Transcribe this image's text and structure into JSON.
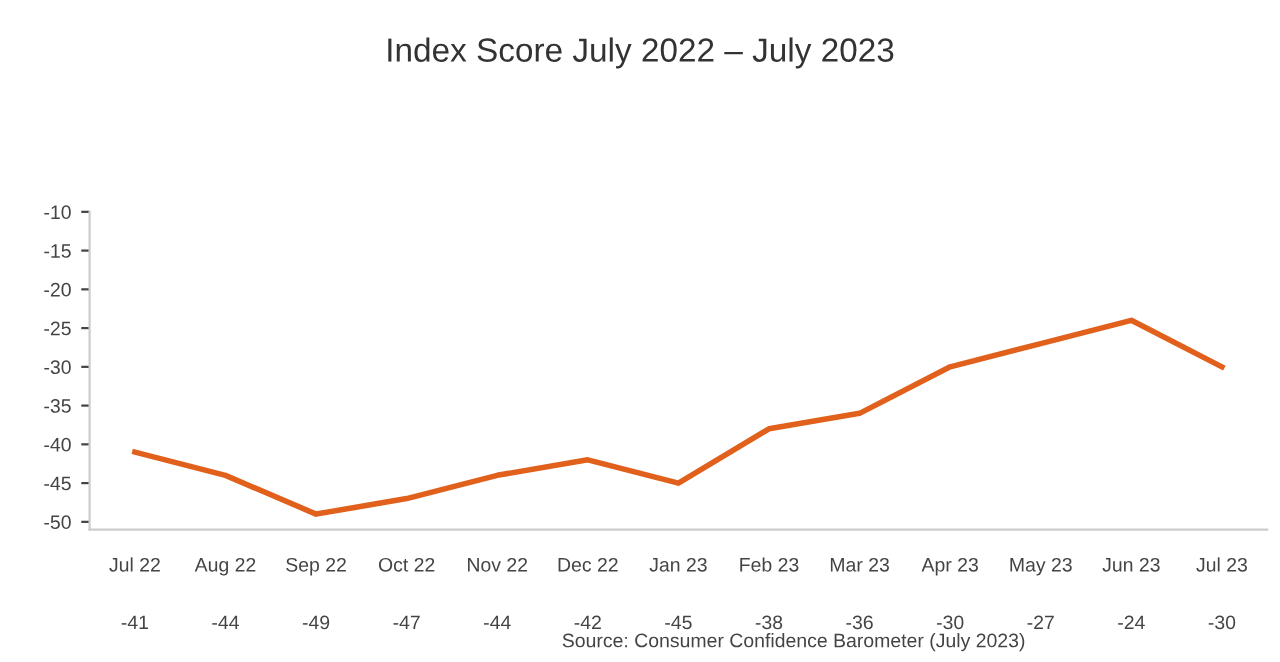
{
  "chart_data": {
    "type": "line",
    "title": "Index Score July 2022 – July 2023",
    "categories": [
      "Jul 22",
      "Aug 22",
      "Sep 22",
      "Oct 22",
      "Nov 22",
      "Dec 22",
      "Jan 23",
      "Feb 23",
      "Mar 23",
      "Apr 23",
      "May 23",
      "Jun 23",
      "Jul 23"
    ],
    "series": [
      {
        "color": "#e0601c",
        "values": [
          -41,
          -44,
          -49,
          -47,
          -44,
          -42,
          -45,
          -38,
          -36,
          -30,
          -27,
          -24,
          -30
        ]
      }
    ],
    "ylim": [
      -51,
      -10
    ],
    "yticks": [
      -50,
      -45,
      -40,
      -35,
      -30,
      -25,
      -20,
      -15,
      -10
    ],
    "grid": false,
    "legend": false,
    "marker": "none",
    "line_style": "solid",
    "data_labels": true,
    "annotations": [
      "Source: Consumer Confidence Barometer (July 2023)"
    ]
  }
}
